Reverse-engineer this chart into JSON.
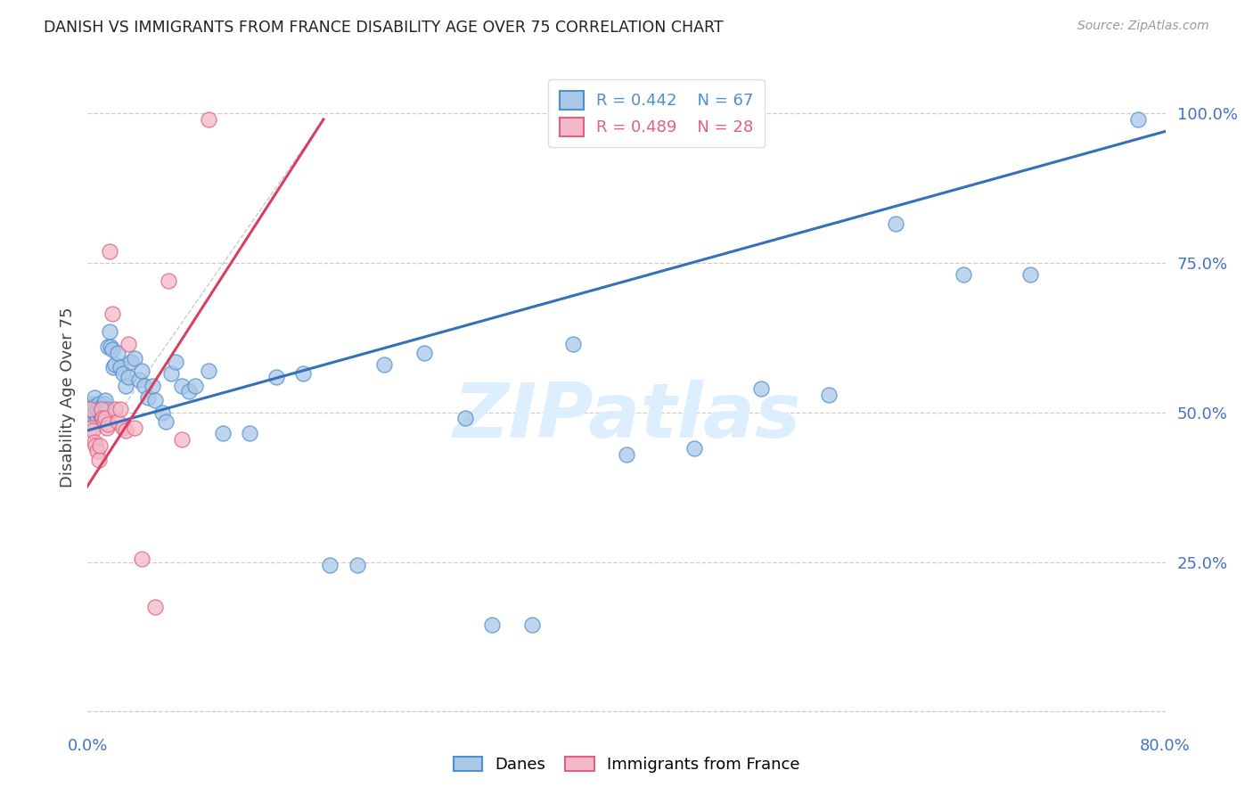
{
  "title": "DANISH VS IMMIGRANTS FROM FRANCE DISABILITY AGE OVER 75 CORRELATION CHART",
  "source": "Source: ZipAtlas.com",
  "ylabel": "Disability Age Over 75",
  "ytick_vals": [
    0.0,
    0.25,
    0.5,
    0.75,
    1.0
  ],
  "ytick_labels": [
    "",
    "25.0%",
    "50.0%",
    "75.0%",
    "100.0%"
  ],
  "legend_blue_R": "R = 0.442",
  "legend_blue_N": "N = 67",
  "legend_pink_R": "R = 0.489",
  "legend_pink_N": "N = 28",
  "blue_color": "#aac8e8",
  "blue_edge_color": "#4e8fce",
  "pink_color": "#f4b8c8",
  "pink_edge_color": "#e06080",
  "blue_line_color": "#3570b8",
  "pink_line_color": "#d84060",
  "watermark_text": "ZIPatlas",
  "watermark_color": "#ddeeff",
  "xlim": [
    0.0,
    0.8
  ],
  "ylim": [
    -0.02,
    1.07
  ],
  "blue_line_x0": 0.0,
  "blue_line_y0": 0.47,
  "blue_line_x1": 0.8,
  "blue_line_y1": 0.97,
  "pink_line_x0": -0.005,
  "pink_line_y0": 0.36,
  "pink_line_x1": 0.175,
  "pink_line_y1": 0.99,
  "pink_line_dashed_x0": 0.005,
  "pink_line_dashed_y0": 0.44,
  "pink_line_dashed_x1": 0.175,
  "pink_line_dashed_y1": 0.99,
  "blue_x": [
    0.002,
    0.003,
    0.003,
    0.004,
    0.004,
    0.005,
    0.005,
    0.006,
    0.006,
    0.007,
    0.007,
    0.008,
    0.008,
    0.009,
    0.01,
    0.01,
    0.011,
    0.012,
    0.013,
    0.014,
    0.015,
    0.016,
    0.017,
    0.018,
    0.019,
    0.02,
    0.022,
    0.024,
    0.026,
    0.028,
    0.03,
    0.032,
    0.035,
    0.038,
    0.04,
    0.042,
    0.045,
    0.048,
    0.05,
    0.055,
    0.058,
    0.062,
    0.065,
    0.07,
    0.075,
    0.08,
    0.09,
    0.1,
    0.12,
    0.14,
    0.16,
    0.18,
    0.2,
    0.22,
    0.25,
    0.28,
    0.3,
    0.33,
    0.36,
    0.4,
    0.45,
    0.5,
    0.55,
    0.6,
    0.65,
    0.7,
    0.78
  ],
  "blue_y": [
    0.505,
    0.5,
    0.515,
    0.495,
    0.51,
    0.5,
    0.525,
    0.5,
    0.51,
    0.505,
    0.49,
    0.5,
    0.515,
    0.5,
    0.495,
    0.51,
    0.505,
    0.515,
    0.52,
    0.505,
    0.61,
    0.635,
    0.61,
    0.605,
    0.575,
    0.58,
    0.6,
    0.575,
    0.565,
    0.545,
    0.56,
    0.585,
    0.59,
    0.555,
    0.57,
    0.545,
    0.525,
    0.545,
    0.52,
    0.5,
    0.485,
    0.565,
    0.585,
    0.545,
    0.535,
    0.545,
    0.57,
    0.465,
    0.465,
    0.56,
    0.565,
    0.245,
    0.245,
    0.58,
    0.6,
    0.49,
    0.145,
    0.145,
    0.615,
    0.43,
    0.44,
    0.54,
    0.53,
    0.815,
    0.73,
    0.73,
    0.99
  ],
  "pink_x": [
    0.002,
    0.003,
    0.004,
    0.005,
    0.006,
    0.007,
    0.008,
    0.009,
    0.01,
    0.011,
    0.012,
    0.013,
    0.014,
    0.015,
    0.016,
    0.018,
    0.02,
    0.022,
    0.024,
    0.026,
    0.028,
    0.03,
    0.035,
    0.04,
    0.05,
    0.06,
    0.07,
    0.09
  ],
  "pink_y": [
    0.505,
    0.475,
    0.47,
    0.45,
    0.445,
    0.435,
    0.42,
    0.445,
    0.505,
    0.49,
    0.485,
    0.49,
    0.475,
    0.48,
    0.77,
    0.665,
    0.505,
    0.485,
    0.505,
    0.475,
    0.47,
    0.615,
    0.475,
    0.255,
    0.175,
    0.72,
    0.455,
    0.99
  ]
}
